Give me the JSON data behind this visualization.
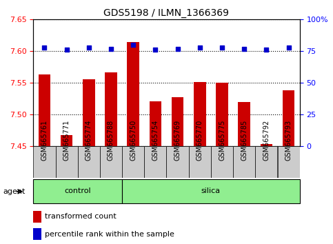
{
  "title": "GDS5198 / ILMN_1366369",
  "samples": [
    "GSM665761",
    "GSM665771",
    "GSM665774",
    "GSM665788",
    "GSM665750",
    "GSM665754",
    "GSM665769",
    "GSM665770",
    "GSM665775",
    "GSM665785",
    "GSM665792",
    "GSM665793"
  ],
  "n_control": 4,
  "n_silica": 8,
  "transformed_count": [
    7.563,
    7.468,
    7.556,
    7.567,
    7.614,
    7.521,
    7.528,
    7.551,
    7.55,
    7.52,
    7.454,
    7.538
  ],
  "percentile_rank": [
    78,
    76,
    78,
    77,
    80,
    76,
    77,
    78,
    78,
    77,
    76,
    78
  ],
  "ylim_left": [
    7.45,
    7.65
  ],
  "ylim_right": [
    0,
    100
  ],
  "yticks_left": [
    7.45,
    7.5,
    7.55,
    7.6,
    7.65
  ],
  "yticks_right": [
    0,
    25,
    50,
    75,
    100
  ],
  "bar_color": "#cc0000",
  "dot_color": "#0000cc",
  "group_color": "#90ee90",
  "bg_color": "#cccccc",
  "agent_label": "agent",
  "control_label": "control",
  "silica_label": "silica",
  "legend_bar": "transformed count",
  "legend_dot": "percentile rank within the sample",
  "baseline": 7.45
}
